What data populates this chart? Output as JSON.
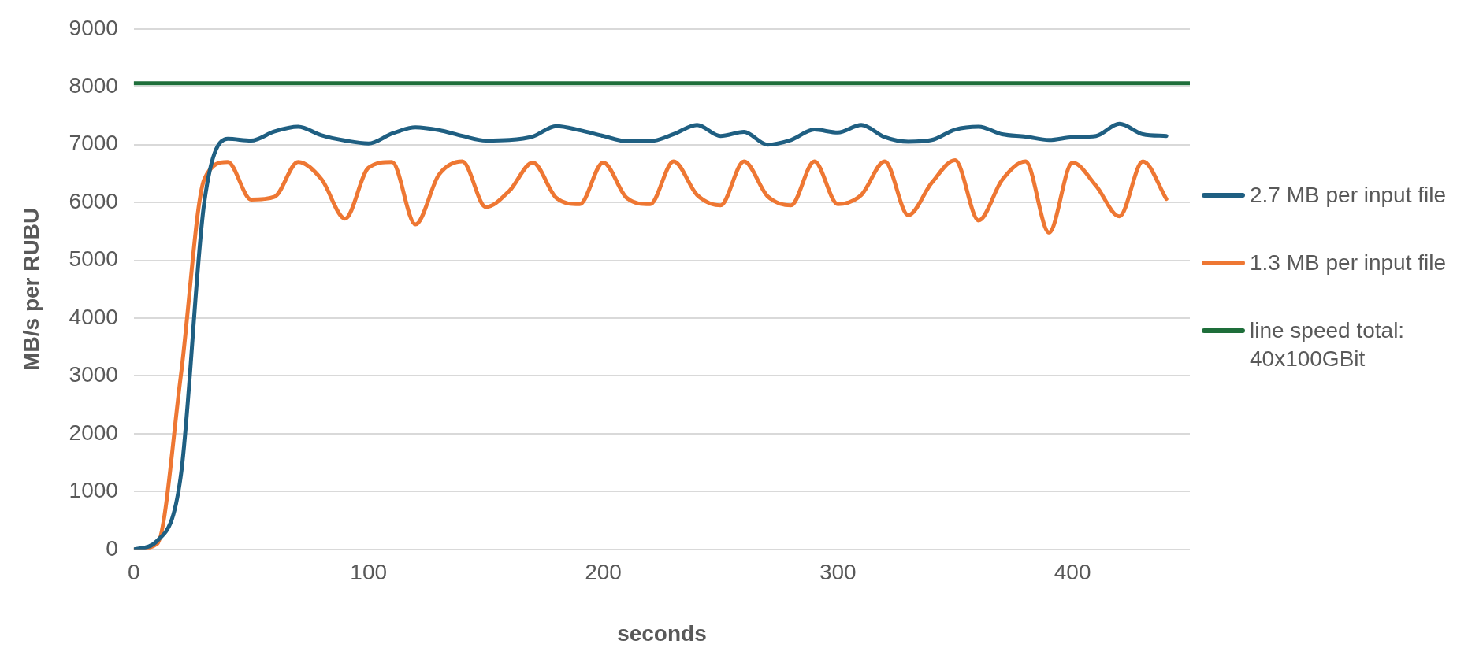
{
  "chart_data": {
    "type": "line",
    "xlabel": "seconds",
    "ylabel": "MB/s per RUBU",
    "x": [
      0,
      10,
      20,
      30,
      40,
      50,
      60,
      70,
      80,
      90,
      100,
      110,
      120,
      130,
      140,
      150,
      160,
      170,
      180,
      190,
      200,
      210,
      220,
      230,
      240,
      250,
      260,
      270,
      280,
      290,
      300,
      310,
      320,
      330,
      340,
      350,
      360,
      370,
      380,
      390,
      400,
      410,
      420,
      430,
      440
    ],
    "series": [
      {
        "name": "2.7 MB per input file",
        "color": "#1f5f82",
        "values": [
          0,
          150,
          1270,
          6000,
          7100,
          7070,
          7230,
          7310,
          7160,
          7070,
          7020,
          7190,
          7300,
          7250,
          7150,
          7070,
          7080,
          7140,
          7320,
          7250,
          7150,
          7060,
          7060,
          7180,
          7340,
          7150,
          7220,
          7000,
          7080,
          7260,
          7210,
          7340,
          7130,
          7050,
          7080,
          7260,
          7310,
          7180,
          7140,
          7080,
          7130,
          7150,
          7360,
          7180,
          7150
        ]
      },
      {
        "name": "1.3 MB per input file",
        "color": "#ee7733",
        "values": [
          0,
          100,
          3000,
          6400,
          6700,
          6050,
          6100,
          6700,
          6400,
          5720,
          6600,
          6700,
          5620,
          6480,
          6710,
          5920,
          6200,
          6690,
          6080,
          5970,
          6690,
          6080,
          5970,
          6710,
          6130,
          5950,
          6710,
          6110,
          5950,
          6710,
          5970,
          6130,
          6710,
          5780,
          6340,
          6730,
          5690,
          6390,
          6710,
          5480,
          6690,
          6290,
          5760,
          6710,
          6060
        ]
      },
      {
        "name": "line speed total: 40x100GBit",
        "color": "#1e6e3a",
        "x": [
          0,
          450
        ],
        "values": [
          8060,
          8060
        ]
      }
    ],
    "xlim": [
      0,
      450
    ],
    "xticks": [
      0,
      100,
      200,
      300,
      400
    ],
    "ylim": [
      0,
      9000
    ],
    "yticks": [
      0,
      1000,
      2000,
      3000,
      4000,
      5000,
      6000,
      7000,
      8000,
      9000
    ],
    "grid": "y",
    "legend": "right",
    "marker": "none",
    "line_style": "solid"
  }
}
